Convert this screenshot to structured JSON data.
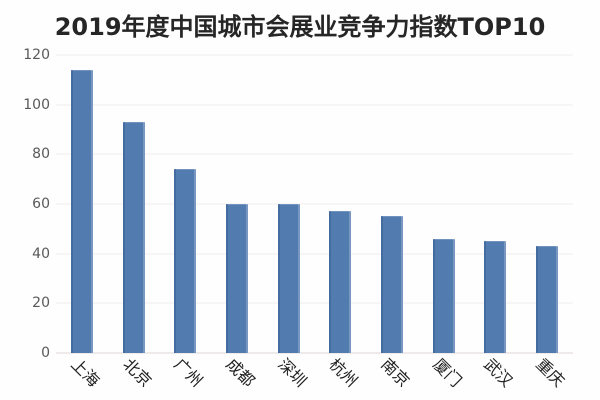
{
  "chart_data": {
    "type": "bar",
    "title": "2019年度中国城市会展业竞争力指数TOP10",
    "categories": [
      "上海",
      "北京",
      "广州",
      "成都",
      "深圳",
      "杭州",
      "南京",
      "厦门",
      "武汉",
      "重庆"
    ],
    "values": [
      114,
      93,
      74,
      60,
      60,
      57,
      55,
      46,
      45,
      43
    ],
    "xlabel": "",
    "ylabel": "",
    "ylim": [
      0,
      120
    ],
    "yticks": [
      0,
      20,
      40,
      60,
      80,
      100,
      120
    ],
    "grid": true,
    "legend": false,
    "colors": {
      "bar": "#527cb0",
      "gridline": "#f2ecec",
      "axis_line": "#ddd6d6",
      "tick_text": "#595959",
      "label_text": "#1f1f1f",
      "title_text": "#262626",
      "background": "#fefefe"
    }
  }
}
